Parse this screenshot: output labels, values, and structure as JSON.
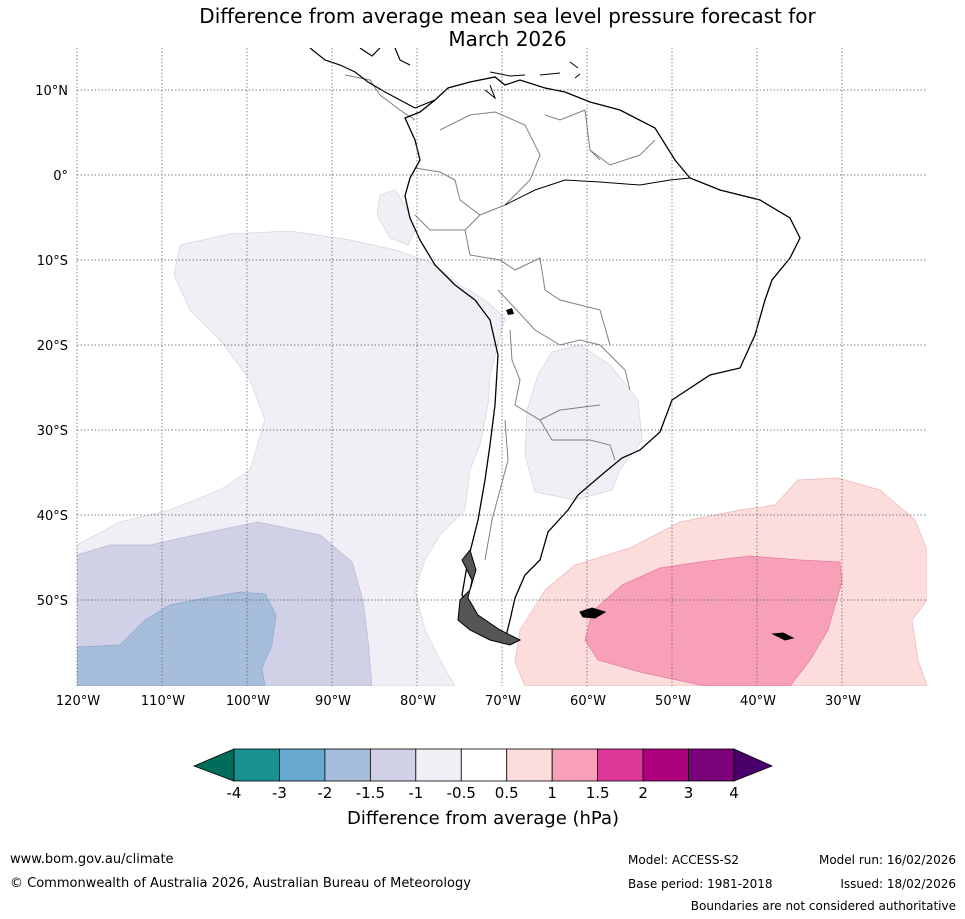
{
  "title": {
    "line1": "Difference from average mean sea level pressure forecast for",
    "line2": "March 2026"
  },
  "map": {
    "lat_ticks": [
      "10°N",
      "0°",
      "10°S",
      "20°S",
      "30°S",
      "40°S",
      "50°S"
    ],
    "lon_ticks": [
      "120°W",
      "110°W",
      "100°W",
      "90°W",
      "80°W",
      "70°W",
      "60°W",
      "50°W",
      "40°W",
      "30°W"
    ],
    "lon_range": [
      -120,
      -20
    ],
    "lat_range": [
      -60,
      15
    ],
    "regions": [
      {
        "name": "pacific-anomaly-minus-0.5-to-minus-1",
        "range": "-1 to -0.5",
        "color": "#f2eef5"
      },
      {
        "name": "pacific-anomaly-minus-1-to-minus-1.5",
        "range": "-1.5 to -1",
        "color": "#d0d1e6"
      },
      {
        "name": "pacific-anomaly-minus-1.5-to-minus-2",
        "range": "-2 to -1.5",
        "color": "#a6bddb"
      },
      {
        "name": "la-plata-anomaly-minus-0.5-to-minus-1",
        "range": "-1 to -0.5",
        "color": "#f2eef5"
      },
      {
        "name": "atlantic-anomaly-0.5-to-1",
        "range": "0.5 to 1",
        "color": "#fddcdc"
      },
      {
        "name": "atlantic-anomaly-1-to-1.5",
        "range": "1 to 1.5",
        "color": "#f9a0b9"
      }
    ],
    "colors": {
      "land_outline": "#000000",
      "borders": "#808080",
      "gridlines": "#555555"
    }
  },
  "colorbar": {
    "labels": [
      "-4",
      "-3",
      "-2",
      "-1.5",
      "-1",
      "-0.5",
      "0.5",
      "1",
      "1.5",
      "2",
      "3",
      "4"
    ],
    "colors": [
      "#1a9090",
      "#67a9cf",
      "#a6bddb",
      "#d0d1e6",
      "#f2eef5",
      "#ffffff",
      "#fddcdc",
      "#f9a0b9",
      "#e0389a",
      "#ae017e",
      "#7a0177"
    ],
    "under_color": "#016c59",
    "over_color": "#49006a",
    "title": "Difference from average (hPa)"
  },
  "footer": {
    "website": "www.bom.gov.au/climate",
    "copyright": "© Commonwealth of Australia 2026, Australian Bureau of Meteorology",
    "model": "Model: ACCESS-S2",
    "base_period": "Base period: 1981-2018",
    "model_run": "Model run: 16/02/2026",
    "issued": "Issued: 18/02/2026",
    "disclaimer": "Boundaries are not considered authoritative"
  }
}
